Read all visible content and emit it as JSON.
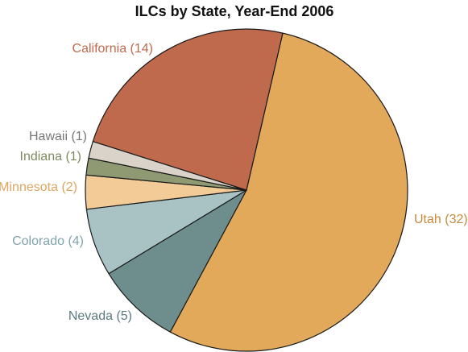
{
  "chart_data": {
    "type": "pie",
    "title": "ILCs by State, Year-End 2006",
    "slices": [
      {
        "label": "Utah (32)",
        "name": "Utah",
        "value": 32,
        "color": "#E3A95A",
        "label_color": "#C8893A"
      },
      {
        "label": "Nevada (5)",
        "name": "Nevada",
        "value": 5,
        "color": "#6E8E8E",
        "label_color": "#5A7A80"
      },
      {
        "label": "Colorado (4)",
        "name": "Colorado",
        "value": 4,
        "color": "#A9C3C5",
        "label_color": "#7FA3AC"
      },
      {
        "label": "Minnesota (2)",
        "name": "Minnesota",
        "value": 2,
        "color": "#F2CB96",
        "label_color": "#E0A460"
      },
      {
        "label": "Indiana (1)",
        "name": "Indiana",
        "value": 1,
        "color": "#8F9A72",
        "label_color": "#7D8A60"
      },
      {
        "label": "Hawaii (1)",
        "name": "Hawaii",
        "value": 1,
        "color": "#D9D3CA",
        "label_color": "#777777"
      },
      {
        "label": "California (14)",
        "name": "California",
        "value": 14,
        "color": "#C06A4D",
        "label_color": "#C06A4D"
      }
    ],
    "start_direction": "clockwise from top, starting at California/Utah boundary",
    "slice_border_color": "#1A1A1A"
  }
}
